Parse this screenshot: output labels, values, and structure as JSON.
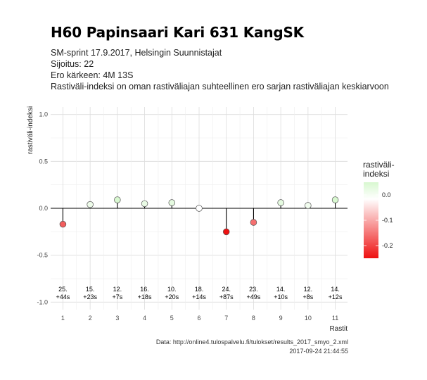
{
  "header": {
    "title": "H60 Papinsaari Kari 631 KangSK",
    "line1": "SM-sprint 17.9.2017, Helsingin Suunnistajat",
    "line2": "Sijoitus: 22",
    "line3": "Ero kärkeen: 4M 13S",
    "line4": "Rastiväli-indeksi on oman rastiväliajan suhteellinen ero sarjan rastiväliajan keskiarvoon"
  },
  "legend": {
    "title_line1": "rastiväli-",
    "title_line2": "indeksi",
    "ticks": [
      "0.0",
      "-0.1",
      "-0.2"
    ],
    "colors": {
      "high": "#d8f8d0",
      "mid": "#ffffff",
      "low": "#ee1111"
    }
  },
  "footer": {
    "source": "Data: http://online4.tulospalvelu.fi/tulokset/results_2017_smyo_2.xml",
    "timestamp": "2017-09-24 21:44:55"
  },
  "chart_data": {
    "type": "lollipop",
    "xlabel": "Rastit",
    "ylabel": "rastiväli-indeksi",
    "ylim": [
      -1.0,
      1.0
    ],
    "yticks": [
      "1.0",
      "0.5",
      "0.0",
      "-0.5",
      "-1.0"
    ],
    "x": [
      1,
      2,
      3,
      4,
      5,
      6,
      7,
      8,
      9,
      10,
      11
    ],
    "values": [
      -0.17,
      0.04,
      0.09,
      0.05,
      0.06,
      0.0,
      -0.25,
      -0.15,
      0.06,
      0.03,
      0.09
    ],
    "rank_labels": [
      "25.",
      "15.",
      "12.",
      "16.",
      "10.",
      "18.",
      "24.",
      "23.",
      "14.",
      "12.",
      "14."
    ],
    "diff_labels": [
      "+44s",
      "+23s",
      "+7s",
      "+18s",
      "+20s",
      "+14s",
      "+87s",
      "+49s",
      "+10s",
      "+8s",
      "+12s"
    ],
    "grid": true,
    "legend_position": "right"
  }
}
